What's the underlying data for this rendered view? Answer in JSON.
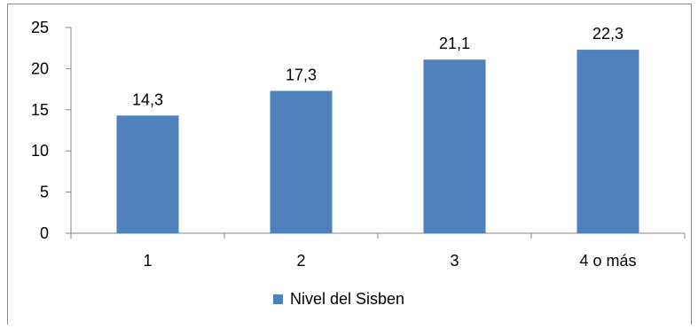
{
  "chart_data": {
    "type": "bar",
    "categories": [
      "1",
      "2",
      "3",
      "4 o más"
    ],
    "series": [
      {
        "name": "Nivel del Sisben",
        "values": [
          14.3,
          17.3,
          21.1,
          22.3
        ],
        "color": "#4f81bd"
      }
    ],
    "data_labels": [
      "14,3",
      "17,3",
      "21,1",
      "22,3"
    ],
    "yticks": [
      "0",
      "5",
      "10",
      "15",
      "20",
      "25"
    ],
    "ylim": [
      0,
      25
    ],
    "legend_position": "bottom",
    "grid": false,
    "axis_color": "#868686"
  },
  "legend": {
    "label": "Nivel del Sisben"
  }
}
